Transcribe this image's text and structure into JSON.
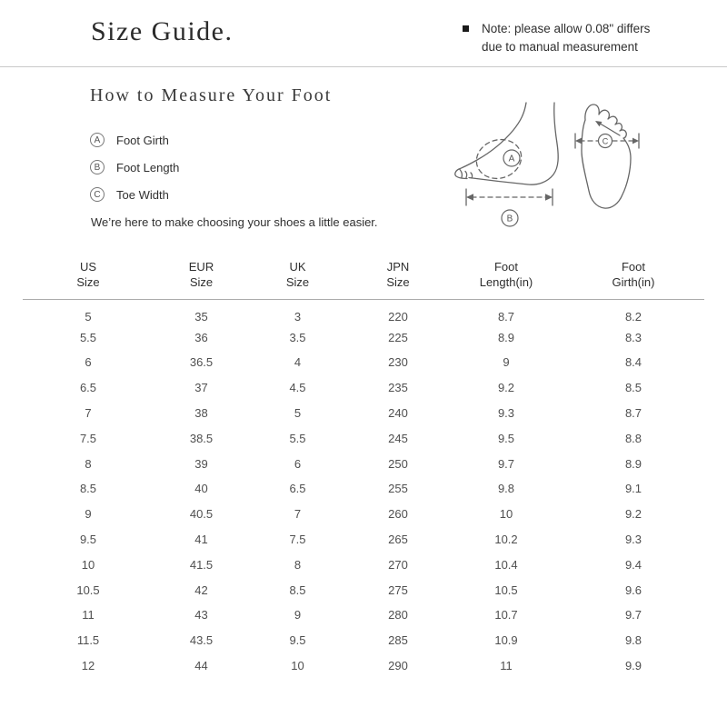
{
  "header": {
    "title": "Size Guide.",
    "note_lines": [
      "Note: please allow 0.08\" differs",
      "due to manual measurement"
    ]
  },
  "measure": {
    "title": "How to Measure Your Foot",
    "items": [
      {
        "letter": "A",
        "label": "Foot Girth"
      },
      {
        "letter": "B",
        "label": "Foot Length"
      },
      {
        "letter": "C",
        "label": "Toe Width"
      }
    ],
    "tagline": "We’re here to make choosing your shoes a little easier."
  },
  "size_table": {
    "headers": [
      {
        "line1": "US",
        "line2": "Size"
      },
      {
        "line1": "EUR",
        "line2": "Size"
      },
      {
        "line1": "UK",
        "line2": "Size"
      },
      {
        "line1": "JPN",
        "line2": "Size"
      },
      {
        "line1": "Foot",
        "line2": "Length(in)"
      },
      {
        "line1": "Foot",
        "line2": "Girth(in)"
      }
    ],
    "rows": [
      [
        "5",
        "35",
        "3",
        "220",
        "8.7",
        "8.2"
      ],
      [
        "5.5",
        "36",
        "3.5",
        "225",
        "8.9",
        "8.3"
      ],
      [
        "6",
        "36.5",
        "4",
        "230",
        "9",
        "8.4"
      ],
      [
        "6.5",
        "37",
        "4.5",
        "235",
        "9.2",
        "8.5"
      ],
      [
        "7",
        "38",
        "5",
        "240",
        "9.3",
        "8.7"
      ],
      [
        "7.5",
        "38.5",
        "5.5",
        "245",
        "9.5",
        "8.8"
      ],
      [
        "8",
        "39",
        "6",
        "250",
        "9.7",
        "8.9"
      ],
      [
        "8.5",
        "40",
        "6.5",
        "255",
        "9.8",
        "9.1"
      ],
      [
        "9",
        "40.5",
        "7",
        "260",
        "10",
        "9.2"
      ],
      [
        "9.5",
        "41",
        "7.5",
        "265",
        "10.2",
        "9.3"
      ],
      [
        "10",
        "41.5",
        "8",
        "270",
        "10.4",
        "9.4"
      ],
      [
        "10.5",
        "42",
        "8.5",
        "275",
        "10.5",
        "9.6"
      ],
      [
        "11",
        "43",
        "9",
        "280",
        "10.7",
        "9.7"
      ],
      [
        "11.5",
        "43.5",
        "9.5",
        "285",
        "10.9",
        "9.8"
      ],
      [
        "12",
        "44",
        "10",
        "290",
        "11",
        "9.9"
      ]
    ]
  },
  "colors": {
    "text_primary": "#2b2b2b",
    "text_secondary": "#4f4f4f",
    "divider": "#c9c9c9",
    "table_header_line": "#ababab",
    "diagram_stroke": "#666666"
  }
}
